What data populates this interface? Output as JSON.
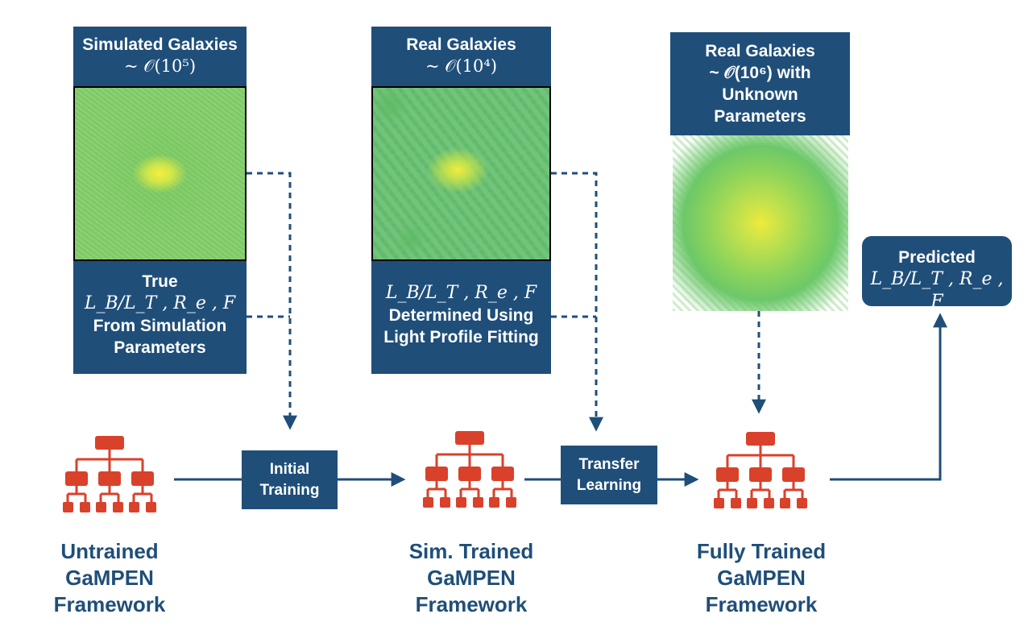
{
  "stage1": {
    "header_title": "Simulated Galaxies",
    "header_sub": "~ 𝒪(10⁵)",
    "footer_line1": "True",
    "footer_math": "L_B/L_T , R_e , F",
    "footer_line2": "From Simulation",
    "footer_line3": "Parameters"
  },
  "stage2": {
    "header_title": "Real Galaxies",
    "header_sub": "~ 𝒪(10⁴)",
    "footer_math": "L_B/L_T , R_e , F",
    "footer_line1": "Determined Using",
    "footer_line2": "Light Profile Fitting"
  },
  "stage3": {
    "header_title": "Real Galaxies",
    "header_sub": "~ 𝒪(10⁶) with",
    "header_line3": "Unknown",
    "header_line4": "Parameters"
  },
  "predicted": {
    "title": "Predicted",
    "math": "L_B/L_T , R_e , F"
  },
  "steps": {
    "initial_line1": "Initial",
    "initial_line2": "Training",
    "transfer_line1": "Transfer",
    "transfer_line2": "Learning"
  },
  "frameworks": {
    "untrained": [
      "Untrained",
      "GaMPEN",
      "Framework"
    ],
    "sim_trained": [
      "Sim. Trained",
      "GaMPEN",
      "Framework"
    ],
    "fully_trained": [
      "Fully Trained",
      "GaMPEN",
      "Framework"
    ]
  },
  "colors": {
    "box_blue": "#1f4e79",
    "network_red": "#d9412b",
    "arrow_blue": "#1f4e79"
  }
}
